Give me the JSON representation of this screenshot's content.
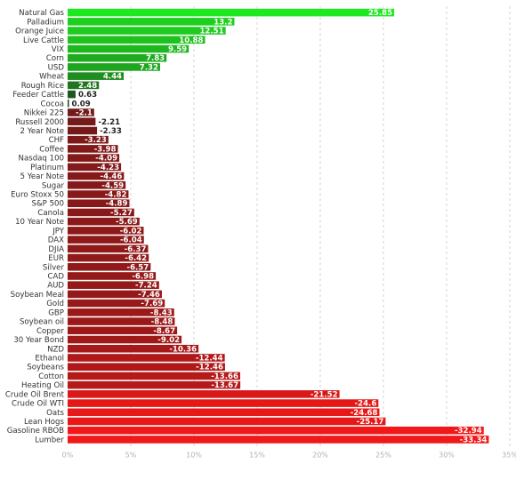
{
  "chart_data": {
    "type": "bar",
    "orientation": "horizontal",
    "title": "",
    "xlabel": "",
    "ylabel": "",
    "xlim": [
      0,
      35
    ],
    "x_ticks": [
      "0%",
      "5%",
      "10%",
      "15%",
      "20%",
      "25%",
      "30%",
      "35%"
    ],
    "grid": true,
    "categories": [
      "Natural Gas",
      "Palladium",
      "Orange Juice",
      "Live Cattle",
      "VIX",
      "Corn",
      "USD",
      "Wheat",
      "Rough Rice",
      "Feeder Cattle",
      "Cocoa",
      "Nikkei 225",
      "Russell 2000",
      "2 Year Note",
      "CHF",
      "Coffee",
      "Nasdaq 100",
      "Platinum",
      "5 Year Note",
      "Sugar",
      "Euro Stoxx 50",
      "S&P 500",
      "Canola",
      "10 Year Note",
      "JPY",
      "DAX",
      "DJIA",
      "EUR",
      "Silver",
      "CAD",
      "AUD",
      "Soybean Meal",
      "Gold",
      "GBP",
      "Soybean oil",
      "Copper",
      "30 Year Bond",
      "NZD",
      "Ethanol",
      "Soybeans",
      "Cotton",
      "Heating Oil",
      "Crude Oil Brent",
      "Crude Oil WTI",
      "Oats",
      "Lean Hogs",
      "Gasoline RBOB",
      "Lumber"
    ],
    "values": [
      25.85,
      13.2,
      12.51,
      10.88,
      9.59,
      7.83,
      7.32,
      4.44,
      2.48,
      0.63,
      0.09,
      -2.1,
      -2.21,
      -2.33,
      -3.23,
      -3.98,
      -4.09,
      -4.23,
      -4.46,
      -4.59,
      -4.82,
      -4.89,
      -5.27,
      -5.69,
      -6.02,
      -6.04,
      -6.37,
      -6.42,
      -6.57,
      -6.98,
      -7.24,
      -7.46,
      -7.69,
      -8.43,
      -8.48,
      -8.67,
      -9.02,
      -10.36,
      -12.44,
      -12.46,
      -13.66,
      -13.67,
      -21.52,
      -24.6,
      -24.68,
      -25.17,
      -32.94,
      -33.34
    ],
    "value_labels": [
      "25.85",
      "13.2",
      "12.51",
      "10.88",
      "9.59",
      "7.83",
      "7.32",
      "4.44",
      "2.48",
      "0.63",
      "0.09",
      "-2.1",
      "-2.21",
      "-2.33",
      "-3.23",
      "-3.98",
      "-4.09",
      "-4.23",
      "-4.46",
      "-4.59",
      "-4.82",
      "-4.89",
      "-5.27",
      "-5.69",
      "-6.02",
      "-6.04",
      "-6.37",
      "-6.42",
      "-6.57",
      "-6.98",
      "-7.24",
      "-7.46",
      "-7.69",
      "-8.43",
      "-8.48",
      "-8.67",
      "-9.02",
      "-10.36",
      "-12.44",
      "-12.46",
      "-13.66",
      "-13.67",
      "-21.52",
      "-24.6",
      "-24.68",
      "-25.17",
      "-32.94",
      "-33.34"
    ],
    "colors": {
      "positive_strong": "#1ee81e",
      "positive_weak": "#1f3a1f",
      "negative_weak": "#5a1a1a",
      "negative_strong": "#f01818",
      "label_on_bar": "#ffffff",
      "label_outside": "#222222"
    }
  }
}
